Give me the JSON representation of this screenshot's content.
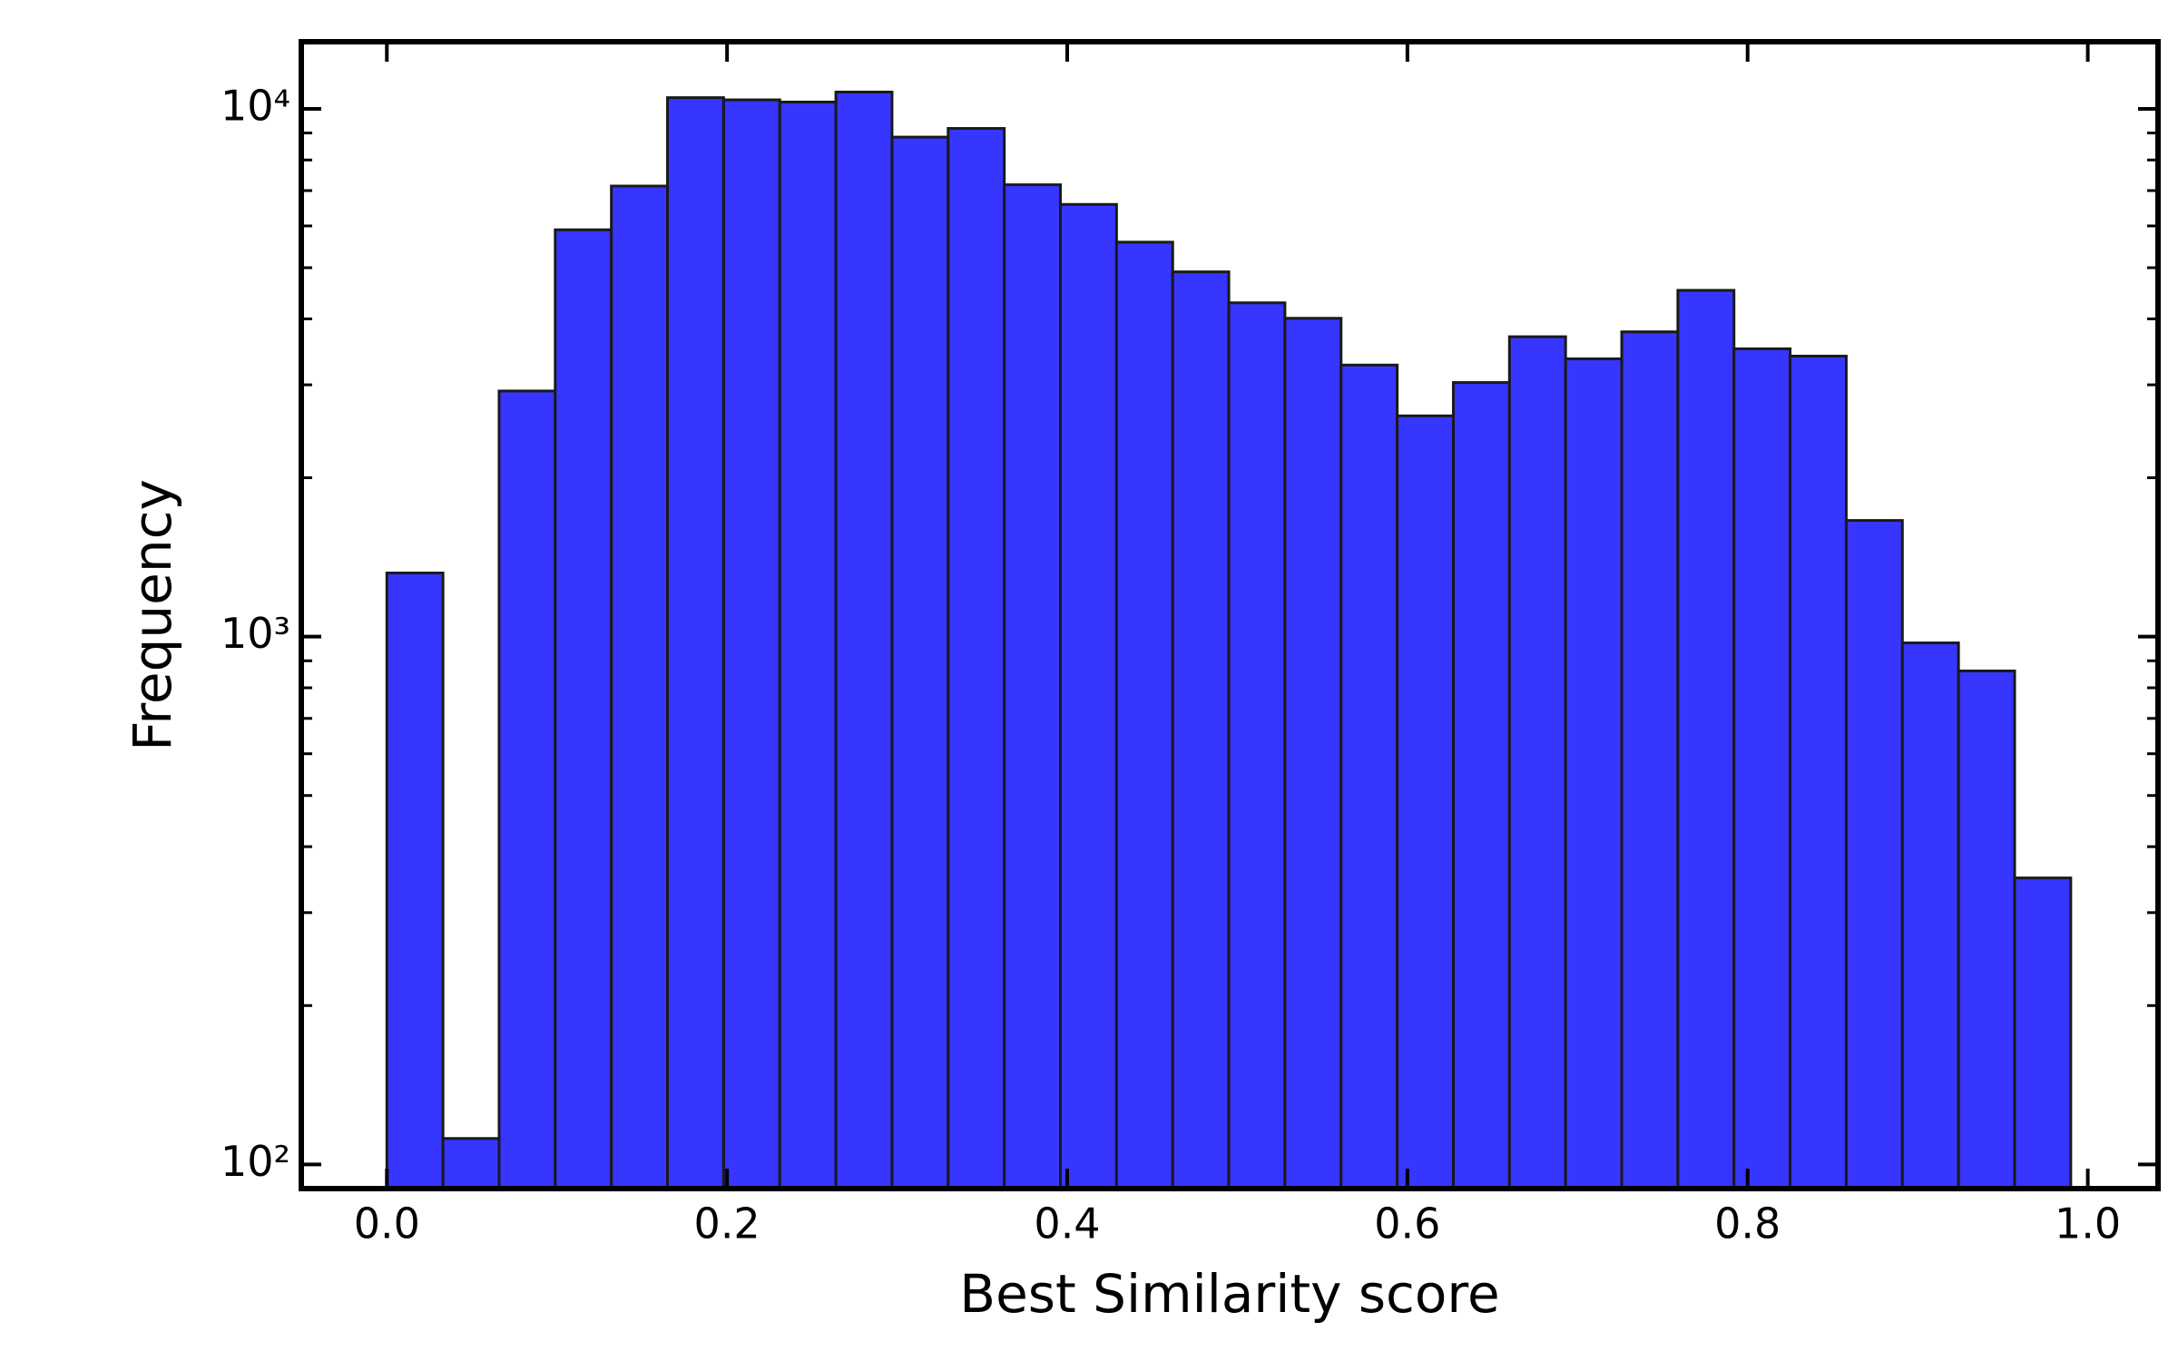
{
  "chart_data": {
    "type": "histogram",
    "xlabel": "Best Similarity score",
    "ylabel": "Frequency",
    "bins": [
      0,
      0.033,
      0.066,
      0.099,
      0.132,
      0.165,
      0.198,
      0.231,
      0.264,
      0.297,
      0.33,
      0.363,
      0.396,
      0.429,
      0.462,
      0.495,
      0.528,
      0.561,
      0.594,
      0.627,
      0.66,
      0.693,
      0.726,
      0.759,
      0.792,
      0.825,
      0.858,
      0.891,
      0.924,
      0.957,
      0.99
    ],
    "values": [
      1320,
      112,
      2920,
      5900,
      7140,
      10500,
      10400,
      10300,
      10760,
      8840,
      9180,
      7180,
      6590,
      5590,
      4910,
      4290,
      4010,
      3270,
      2620,
      3030,
      3700,
      3360,
      3780,
      4530,
      3510,
      3400,
      1660,
      973,
      861,
      349
    ],
    "color": "#3636ff",
    "edgecolor": "#1a1a1a",
    "xlim": [
      -0.0503,
      1.0413
    ],
    "xticks": [
      {
        "value": 0,
        "label": "0.0"
      },
      0.2,
      0.4,
      0.6,
      0.8,
      {
        "value": 1,
        "label": "1.0"
      }
    ],
    "ylim": [
      90,
      13400
    ],
    "ylog": true,
    "yticks": [
      {
        "value": 100,
        "label": "10²"
      },
      {
        "value": 1000,
        "label": "10³"
      },
      {
        "value": 10000,
        "label": "10⁴"
      }
    ],
    "minor_yticks": [
      200,
      300,
      400,
      500,
      600,
      700,
      800,
      900,
      2000,
      3000,
      4000,
      5000,
      6000,
      7000,
      8000,
      9000
    ]
  }
}
